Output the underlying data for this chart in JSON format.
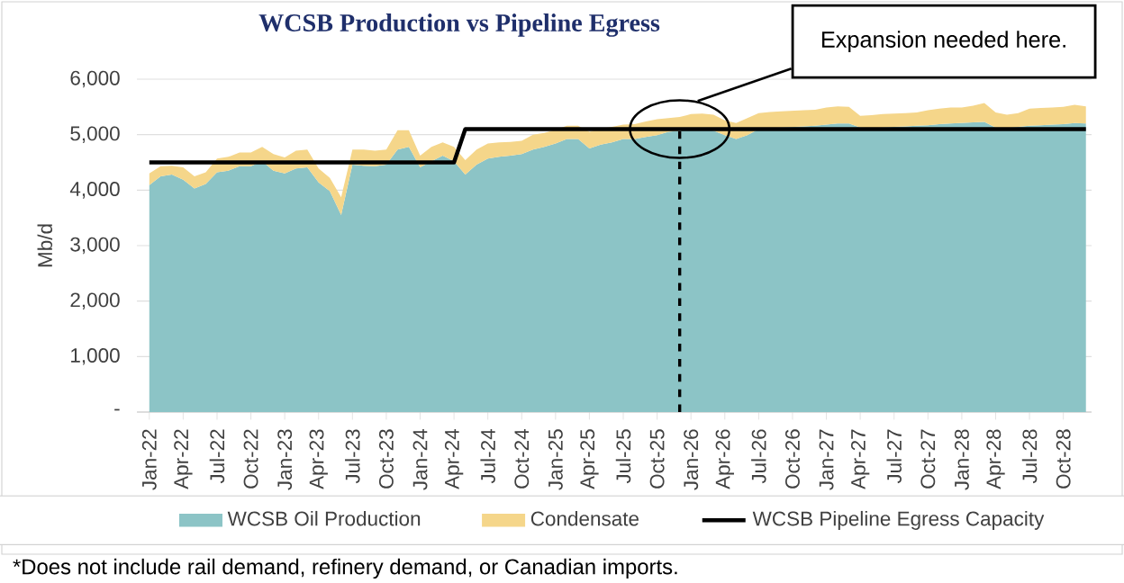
{
  "chart_data": {
    "type": "area",
    "title": "WCSB Production vs Pipeline Egress",
    "ylabel": "Mb/d",
    "stacked": true,
    "x": [
      "2022-01",
      "2022-02",
      "2022-03",
      "2022-04",
      "2022-05",
      "2022-06",
      "2022-07",
      "2022-08",
      "2022-09",
      "2022-10",
      "2022-11",
      "2022-12",
      "2023-01",
      "2023-02",
      "2023-03",
      "2023-04",
      "2023-05",
      "2023-06",
      "2023-07",
      "2023-08",
      "2023-09",
      "2023-10",
      "2023-11",
      "2023-12",
      "2024-01",
      "2024-02",
      "2024-03",
      "2024-04",
      "2024-05",
      "2024-06",
      "2024-07",
      "2024-08",
      "2024-09",
      "2024-10",
      "2024-11",
      "2024-12",
      "2025-01",
      "2025-02",
      "2025-03",
      "2025-04",
      "2025-05",
      "2025-06",
      "2025-07",
      "2025-08",
      "2025-09",
      "2025-10",
      "2025-11",
      "2025-12",
      "2026-01",
      "2026-02",
      "2026-03",
      "2026-04",
      "2026-05",
      "2026-06",
      "2026-07",
      "2026-08",
      "2026-09",
      "2026-10",
      "2026-11",
      "2026-12",
      "2027-01",
      "2027-02",
      "2027-03",
      "2027-04",
      "2027-05",
      "2027-06",
      "2027-07",
      "2027-08",
      "2027-09",
      "2027-10",
      "2027-11",
      "2027-12",
      "2028-01",
      "2028-02",
      "2028-03",
      "2028-04",
      "2028-05",
      "2028-06",
      "2028-07",
      "2028-08",
      "2028-09",
      "2028-10",
      "2028-11",
      "2028-12"
    ],
    "series": [
      {
        "name": "WCSB Oil Production",
        "color": "#8cc4c6",
        "values": [
          4090,
          4250,
          4280,
          4190,
          4030,
          4110,
          4320,
          4350,
          4430,
          4430,
          4520,
          4350,
          4300,
          4390,
          4410,
          4140,
          3980,
          3550,
          4460,
          4440,
          4430,
          4460,
          4730,
          4780,
          4410,
          4520,
          4620,
          4520,
          4280,
          4460,
          4570,
          4600,
          4620,
          4650,
          4730,
          4780,
          4840,
          4920,
          4920,
          4750,
          4820,
          4860,
          4920,
          4920,
          4960,
          4990,
          5050,
          5070,
          5090,
          5100,
          5070,
          4990,
          4920,
          4990,
          5100,
          5120,
          5130,
          5140,
          5150,
          5160,
          5180,
          5200,
          5200,
          5130,
          5120,
          5130,
          5140,
          5150,
          5160,
          5170,
          5190,
          5200,
          5210,
          5220,
          5230,
          5130,
          5120,
          5140,
          5160,
          5170,
          5180,
          5190,
          5210,
          5200
        ]
      },
      {
        "name": "Condensate",
        "color": "#f5d68a",
        "values": [
          210,
          180,
          160,
          220,
          220,
          210,
          250,
          250,
          250,
          250,
          260,
          300,
          290,
          320,
          320,
          250,
          240,
          320,
          270,
          290,
          280,
          270,
          350,
          300,
          210,
          260,
          240,
          260,
          260,
          270,
          270,
          260,
          250,
          240,
          270,
          250,
          250,
          240,
          240,
          300,
          290,
          280,
          260,
          270,
          280,
          290,
          250,
          250,
          280,
          280,
          290,
          270,
          290,
          310,
          290,
          290,
          290,
          290,
          290,
          290,
          310,
          310,
          300,
          210,
          230,
          240,
          240,
          240,
          240,
          270,
          280,
          290,
          280,
          300,
          340,
          270,
          240,
          250,
          310,
          310,
          310,
          310,
          330,
          310
        ]
      },
      {
        "name": "WCSB Pipeline Egress Capacity",
        "type": "line",
        "color": "#000000",
        "values": [
          4500,
          4500,
          4500,
          4500,
          4500,
          4500,
          4500,
          4500,
          4500,
          4500,
          4500,
          4500,
          4500,
          4500,
          4500,
          4500,
          4500,
          4500,
          4500,
          4500,
          4500,
          4500,
          4500,
          4500,
          4500,
          4500,
          4500,
          4500,
          5100,
          5100,
          5100,
          5100,
          5100,
          5100,
          5100,
          5100,
          5100,
          5100,
          5100,
          5100,
          5100,
          5100,
          5100,
          5100,
          5100,
          5100,
          5100,
          5100,
          5100,
          5100,
          5100,
          5100,
          5100,
          5100,
          5100,
          5100,
          5100,
          5100,
          5100,
          5100,
          5100,
          5100,
          5100,
          5100,
          5100,
          5100,
          5100,
          5100,
          5100,
          5100,
          5100,
          5100,
          5100,
          5100,
          5100,
          5100,
          5100,
          5100,
          5100,
          5100,
          5100,
          5100,
          5100,
          5100
        ]
      }
    ],
    "xlim": [
      "2022-01",
      "2028-12"
    ],
    "xticks": [
      {
        "value": "2022-01",
        "label": "Jan-22"
      },
      {
        "value": "2022-04",
        "label": "Apr-22"
      },
      {
        "value": "2022-07",
        "label": "Jul-22"
      },
      {
        "value": "2022-10",
        "label": "Oct-22"
      },
      {
        "value": "2023-01",
        "label": "Jan-23"
      },
      {
        "value": "2023-04",
        "label": "Apr-23"
      },
      {
        "value": "2023-07",
        "label": "Jul-23"
      },
      {
        "value": "2023-10",
        "label": "Oct-23"
      },
      {
        "value": "2024-01",
        "label": "Jan-24"
      },
      {
        "value": "2024-04",
        "label": "Apr-24"
      },
      {
        "value": "2024-07",
        "label": "Jul-24"
      },
      {
        "value": "2024-10",
        "label": "Oct-24"
      },
      {
        "value": "2025-01",
        "label": "Jan-25"
      },
      {
        "value": "2025-04",
        "label": "Apr-25"
      },
      {
        "value": "2025-07",
        "label": "Jul-25"
      },
      {
        "value": "2025-10",
        "label": "Oct-25"
      },
      {
        "value": "2026-01",
        "label": "Jan-26"
      },
      {
        "value": "2026-04",
        "label": "Apr-26"
      },
      {
        "value": "2026-07",
        "label": "Jul-26"
      },
      {
        "value": "2026-10",
        "label": "Oct-26"
      },
      {
        "value": "2027-01",
        "label": "Jan-27"
      },
      {
        "value": "2027-04",
        "label": "Apr-27"
      },
      {
        "value": "2027-07",
        "label": "Jul-27"
      },
      {
        "value": "2027-10",
        "label": "Oct-27"
      },
      {
        "value": "2028-01",
        "label": "Jan-28"
      },
      {
        "value": "2028-04",
        "label": "Apr-28"
      },
      {
        "value": "2028-07",
        "label": "Jul-28"
      },
      {
        "value": "2028-10",
        "label": "Oct-28"
      }
    ],
    "ylim": [
      0,
      6000
    ],
    "yticks": [
      {
        "value": 0,
        "label": "-"
      },
      {
        "value": 1000,
        "label": "1,000"
      },
      {
        "value": 2000,
        "label": "2,000"
      },
      {
        "value": 3000,
        "label": "3,000"
      },
      {
        "value": 4000,
        "label": "4,000"
      },
      {
        "value": 5000,
        "label": "5,000"
      },
      {
        "value": 6000,
        "label": "6,000"
      }
    ],
    "grid": "y",
    "legend": "bottom",
    "ref_lines": [
      {
        "axis": "x",
        "value": "2025-12",
        "color": "#000000",
        "line_style": "dashed"
      }
    ],
    "annotations": [
      "Expansion needed here.",
      "*Does not include rail demand, refinery demand, or Canadian imports."
    ]
  }
}
